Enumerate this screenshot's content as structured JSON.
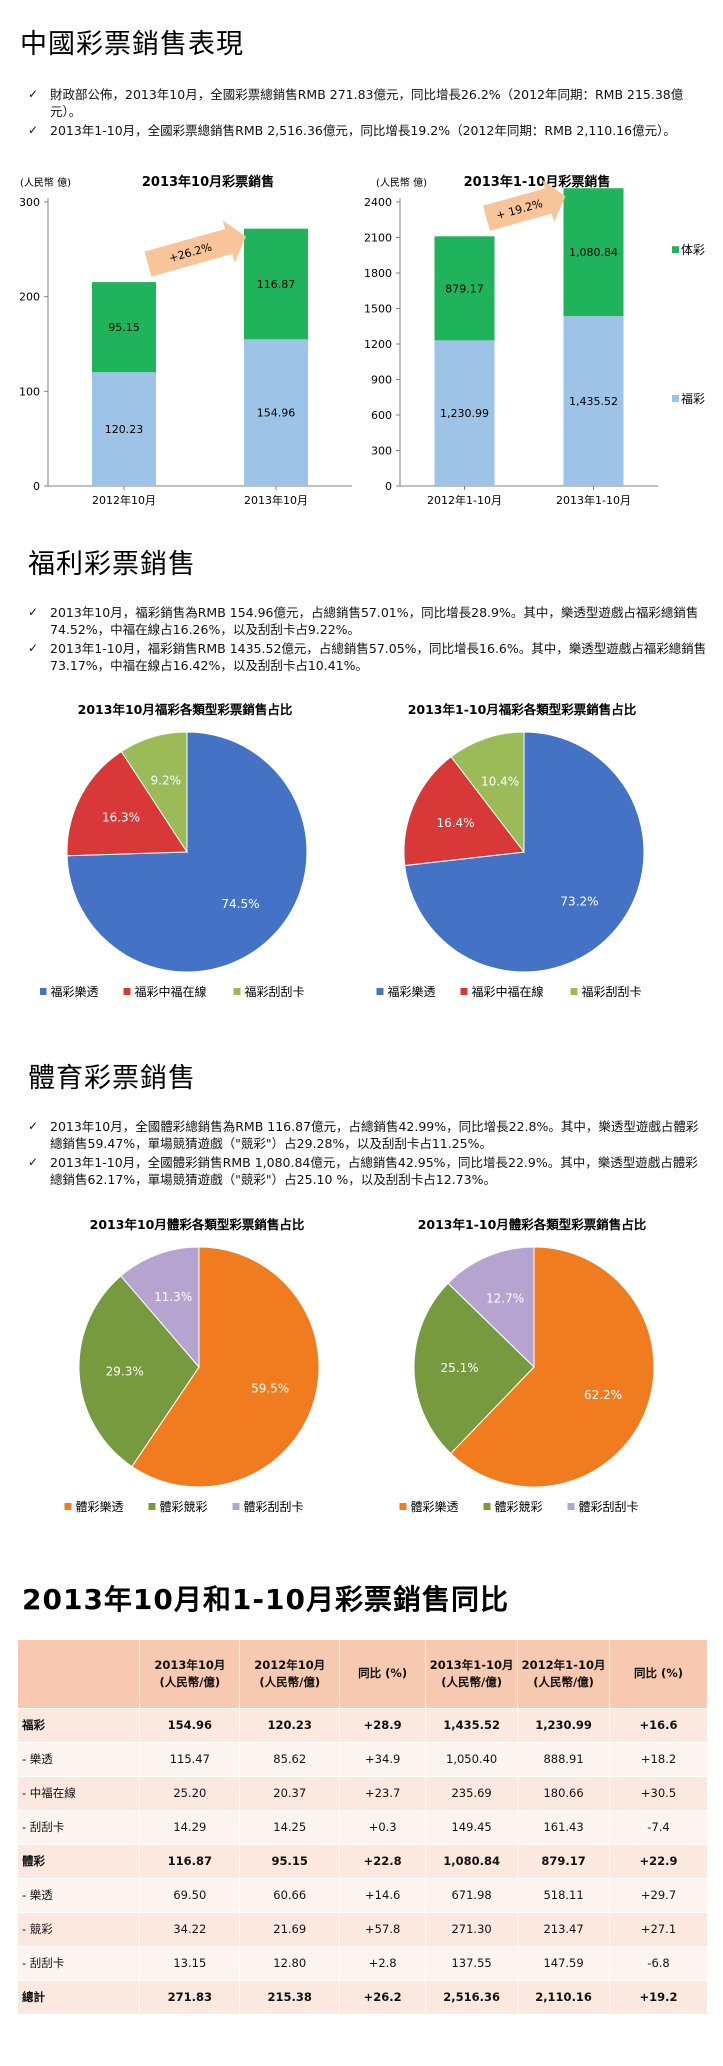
{
  "section1": {
    "title": "中國彩票銷售表現",
    "bullets": [
      "財政部公佈，2013年10月，全國彩票總銷售RMB 271.83億元，同比增長26.2%（2012年同期：RMB 215.38億元）。",
      "2013年1-10月，全國彩票總銷售RMB 2,516.36億元，同比增長19.2%（2012年同期：RMB 2,110.16億元）。"
    ]
  },
  "section2": {
    "title": "福利彩票銷售",
    "bullets": [
      "2013年10月，福彩銷售為RMB 154.96億元，占總銷售57.01%，同比增長28.9%。其中，樂透型遊戲占福彩總銷售74.52%，中福在線占16.26%，以及刮刮卡占9.22%。",
      "2013年1-10月，福彩銷售RMB 1435.52億元，占總銷售57.05%，同比增長16.6%。其中，樂透型遊戲占福彩總銷售73.17%，中福在線占16.42%，以及刮刮卡占10.41%。"
    ]
  },
  "section3": {
    "title": "體育彩票銷售",
    "bullets": [
      "2013年10月，全國體彩總銷售為RMB 116.87億元，占總銷售42.99%，同比增長22.8%。其中，樂透型遊戲占體彩總銷售59.47%，單場競猜遊戲（\"競彩\"）占29.28%，以及刮刮卡占11.25%。",
      "2013年1-10月，全國體彩銷售RMB 1,080.84億元，占總銷售42.95%，同比增長22.9%。其中，樂透型遊戲占體彩總銷售62.17%，單場競猜遊戲（\"競彩\"）占25.10 %，以及刮刮卡占12.73%。"
    ]
  },
  "section4": {
    "title": "2013年10月和1-10月彩票銷售同比"
  },
  "colors": {
    "fucai_bar": "#9dc3e6",
    "ticai_bar": "#1fb35b",
    "arrow": "#f8c49a",
    "lotto_fucai": "#4472c4",
    "zhongfu": "#d93838",
    "scratch_fucai": "#9bbb59",
    "lotto_ticai": "#f07c1f",
    "jingcai": "#779a3e",
    "scratch_ticai": "#b5a4cf"
  },
  "chart_data": [
    {
      "type": "bar",
      "stacked": true,
      "title": "2013年10月彩票銷售",
      "ylabel": "(人民幣 億)",
      "categories": [
        "2012年10月",
        "2013年10月"
      ],
      "series": [
        {
          "name": "福彩",
          "values": [
            120.23,
            154.96
          ],
          "labels": [
            "120.23",
            "154.96"
          ]
        },
        {
          "name": "体彩",
          "values": [
            95.15,
            116.87
          ],
          "labels": [
            "95.15",
            "116.87"
          ]
        }
      ],
      "ylim": [
        0,
        300
      ],
      "yticks": [
        "0",
        "100",
        "200",
        "300"
      ],
      "annotation": "+26.2%",
      "grid": false
    },
    {
      "type": "bar",
      "stacked": true,
      "title": "2013年1-10月彩票銷售",
      "ylabel": "(人民幣 億)",
      "categories": [
        "2012年1-10月",
        "2013年1-10月"
      ],
      "series": [
        {
          "name": "福彩",
          "values": [
            1230.99,
            1435.52
          ],
          "labels": [
            "1,230.99",
            "1,435.52"
          ]
        },
        {
          "name": "体彩",
          "values": [
            879.17,
            1080.84
          ],
          "labels": [
            "879.17",
            "1,080.84"
          ]
        }
      ],
      "ylim": [
        0,
        2400
      ],
      "yticks": [
        "0",
        "300",
        "600",
        "900",
        "1200",
        "1500",
        "1800",
        "2100",
        "2400"
      ],
      "annotation": "+ 19.2%",
      "legend_position": "right",
      "grid": false
    },
    {
      "type": "pie",
      "title": "2013年10月福彩各類型彩票銷售占比",
      "categories": [
        "福彩樂透",
        "福彩中福在線",
        "福彩刮刮卡"
      ],
      "values": [
        74.5,
        16.3,
        9.2
      ],
      "labels": [
        "74.5%",
        "16.3%",
        "9.2%"
      ],
      "legend_position": "bottom"
    },
    {
      "type": "pie",
      "title": "2013年1-10月福彩各類型彩票銷售占比",
      "categories": [
        "福彩樂透",
        "福彩中福在線",
        "福彩刮刮卡"
      ],
      "values": [
        73.2,
        16.4,
        10.4
      ],
      "labels": [
        "73.2%",
        "16.4%",
        "10.4%"
      ],
      "legend_position": "bottom"
    },
    {
      "type": "pie",
      "title": "2013年10月體彩各類型彩票銷售占比",
      "categories": [
        "體彩樂透",
        "體彩競彩",
        "體彩刮刮卡"
      ],
      "values": [
        59.5,
        29.3,
        11.3
      ],
      "labels": [
        "59.5%",
        "29.3%",
        "11.3%"
      ],
      "legend_position": "bottom"
    },
    {
      "type": "pie",
      "title": "2013年1-10月體彩各類型彩票銷售占比",
      "categories": [
        "體彩樂透",
        "體彩競彩",
        "體彩刮刮卡"
      ],
      "values": [
        62.2,
        25.1,
        12.7
      ],
      "labels": [
        "62.2%",
        "25.1%",
        "12.7%"
      ],
      "legend_position": "bottom"
    },
    {
      "type": "table",
      "headers": [
        "",
        "2013年10月\n(人民幣/億)",
        "2012年10月\n(人民幣/億)",
        "同比 (%)",
        "2013年1-10月\n(人民幣/億)",
        "2012年1-10月\n(人民幣/億)",
        "同比 (%)"
      ],
      "rows": [
        {
          "label": "福彩",
          "bold": true,
          "cells": [
            "154.96",
            "120.23",
            "+28.9",
            "1,435.52",
            "1,230.99",
            "+16.6"
          ]
        },
        {
          "label": "- 樂透",
          "bold": false,
          "cells": [
            "115.47",
            "85.62",
            "+34.9",
            "1,050.40",
            "888.91",
            "+18.2"
          ]
        },
        {
          "label": "- 中福在線",
          "bold": false,
          "cells": [
            "25.20",
            "20.37",
            "+23.7",
            "235.69",
            "180.66",
            "+30.5"
          ]
        },
        {
          "label": "- 刮刮卡",
          "bold": false,
          "cells": [
            "14.29",
            "14.25",
            "+0.3",
            "149.45",
            "161.43",
            "-7.4"
          ]
        },
        {
          "label": "體彩",
          "bold": true,
          "cells": [
            "116.87",
            "95.15",
            "+22.8",
            "1,080.84",
            "879.17",
            "+22.9"
          ]
        },
        {
          "label": "- 樂透",
          "bold": false,
          "cells": [
            "69.50",
            "60.66",
            "+14.6",
            "671.98",
            "518.11",
            "+29.7"
          ]
        },
        {
          "label": "- 競彩",
          "bold": false,
          "cells": [
            "34.22",
            "21.69",
            "+57.8",
            "271.30",
            "213.47",
            "+27.1"
          ]
        },
        {
          "label": "- 刮刮卡",
          "bold": false,
          "cells": [
            "13.15",
            "12.80",
            "+2.8",
            "137.55",
            "147.59",
            "-6.8"
          ]
        },
        {
          "label": "總計",
          "bold": true,
          "cells": [
            "271.83",
            "215.38",
            "+26.2",
            "2,516.36",
            "2,110.16",
            "+19.2"
          ]
        }
      ]
    }
  ]
}
